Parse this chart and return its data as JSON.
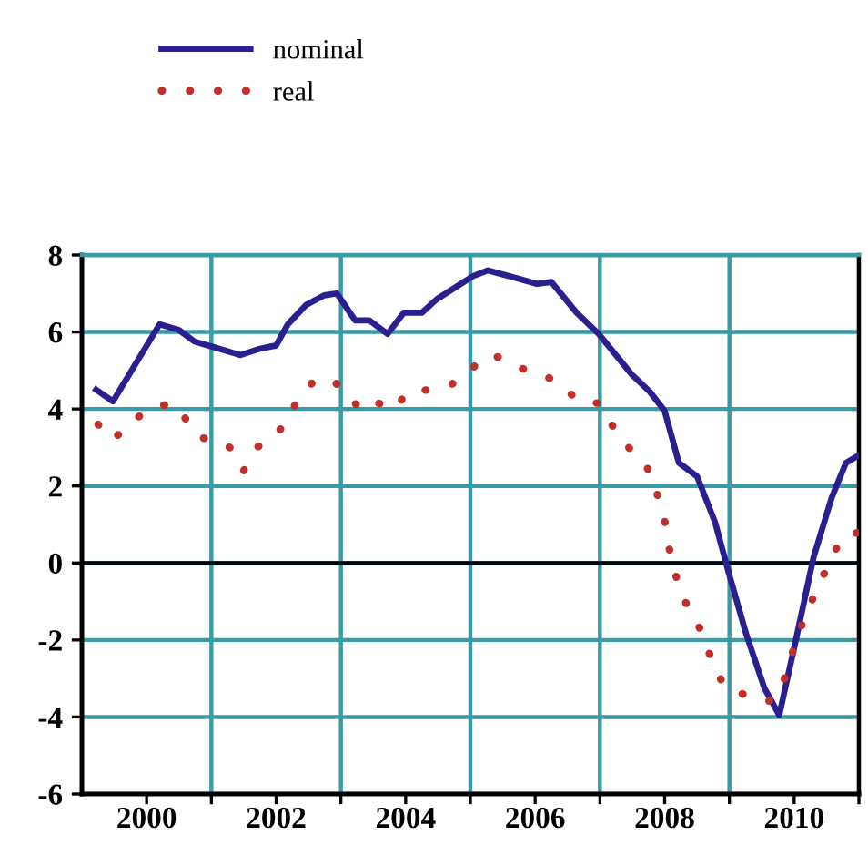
{
  "chart_data": {
    "type": "line",
    "xlim": [
      1999,
      2011
    ],
    "ylim": [
      -6,
      8
    ],
    "xticks": [
      {
        "value": 2000,
        "label": "2000"
      },
      {
        "value": 2001,
        "label": null
      },
      {
        "value": 2002,
        "label": "2002"
      },
      {
        "value": 2003,
        "label": null
      },
      {
        "value": 2004,
        "label": "2004"
      },
      {
        "value": 2005,
        "label": null
      },
      {
        "value": 2006,
        "label": "2006"
      },
      {
        "value": 2007,
        "label": null
      },
      {
        "value": 2008,
        "label": "2008"
      },
      {
        "value": 2009,
        "label": null
      },
      {
        "value": 2010,
        "label": "2010"
      },
      {
        "value": 2011,
        "label": null
      }
    ],
    "yticks": [
      -6,
      -4,
      -2,
      0,
      2,
      4,
      6,
      8
    ],
    "grid": true,
    "legend": "top left",
    "ref_lines": [
      {
        "axis": "y",
        "value": 0,
        "color": "#000000"
      }
    ],
    "series": [
      {
        "name": "nominal",
        "color": "#2a1f8f",
        "line_style": "solid",
        "x": [
          1999.22,
          1999.48,
          2000.2,
          2000.5,
          2000.74,
          2001.05,
          2001.45,
          2001.72,
          2002.0,
          2002.18,
          2002.46,
          2002.74,
          2002.94,
          2003.22,
          2003.44,
          2003.72,
          2003.97,
          2004.25,
          2004.48,
          2005.04,
          2005.27,
          2005.6,
          2006.03,
          2006.25,
          2006.64,
          2006.98,
          2007.49,
          2007.77,
          2008.0,
          2008.22,
          2008.5,
          2008.78,
          2008.98,
          2009.26,
          2009.54,
          2009.77,
          2010.02,
          2010.3,
          2010.58,
          2010.8,
          2011.0
        ],
        "values": [
          4.5,
          4.2,
          6.2,
          6.05,
          5.75,
          5.6,
          5.4,
          5.55,
          5.65,
          6.2,
          6.7,
          6.95,
          7.0,
          6.3,
          6.3,
          5.95,
          6.5,
          6.5,
          6.85,
          7.45,
          7.6,
          7.45,
          7.25,
          7.3,
          6.5,
          5.95,
          4.9,
          4.45,
          3.95,
          2.6,
          2.25,
          1.05,
          -0.2,
          -1.85,
          -3.25,
          -3.95,
          -2.05,
          0.15,
          1.7,
          2.6,
          2.8
        ]
      },
      {
        "name": "real",
        "color": "#c0302a",
        "line_style": "dotted",
        "x": [
          1999.25,
          1999.48,
          1999.76,
          2000.04,
          2000.38,
          2000.6,
          2000.83,
          2001.1,
          2001.33,
          2001.5,
          2001.7,
          2001.98,
          2002.2,
          2002.34,
          2002.6,
          2002.88,
          2003.13,
          2003.33,
          2003.58,
          2003.83,
          2004.03,
          2004.37,
          2004.62,
          2004.96,
          2005.18,
          2005.46,
          2005.8,
          2006.11,
          2006.39,
          2006.67,
          2006.98,
          2007.18,
          2007.38,
          2007.63,
          2007.8,
          2007.9,
          2008.0,
          2008.05,
          2008.13,
          2008.22,
          2008.36,
          2008.53,
          2008.67,
          2008.78,
          2008.98,
          2009.31,
          2009.6,
          2009.82,
          2009.9,
          2010.02,
          2010.13,
          2010.27,
          2010.41,
          2010.58,
          2010.72,
          2011.0
        ],
        "values": [
          3.6,
          3.2,
          3.65,
          4.0,
          4.15,
          3.75,
          3.25,
          3.2,
          2.95,
          2.4,
          3.0,
          3.3,
          3.75,
          4.3,
          4.75,
          4.75,
          4.3,
          3.95,
          4.15,
          4.0,
          4.45,
          4.5,
          4.55,
          4.9,
          5.35,
          5.35,
          5.05,
          4.9,
          4.65,
          4.2,
          4.15,
          3.6,
          3.1,
          2.7,
          2.3,
          1.7,
          1.1,
          0.5,
          0.0,
          -0.65,
          -1.15,
          -1.65,
          -2.25,
          -2.8,
          -3.3,
          -3.45,
          -3.6,
          -3.25,
          -2.6,
          -2.15,
          -1.55,
          -1.0,
          -0.45,
          0.1,
          0.65,
          0.8
        ]
      }
    ]
  }
}
